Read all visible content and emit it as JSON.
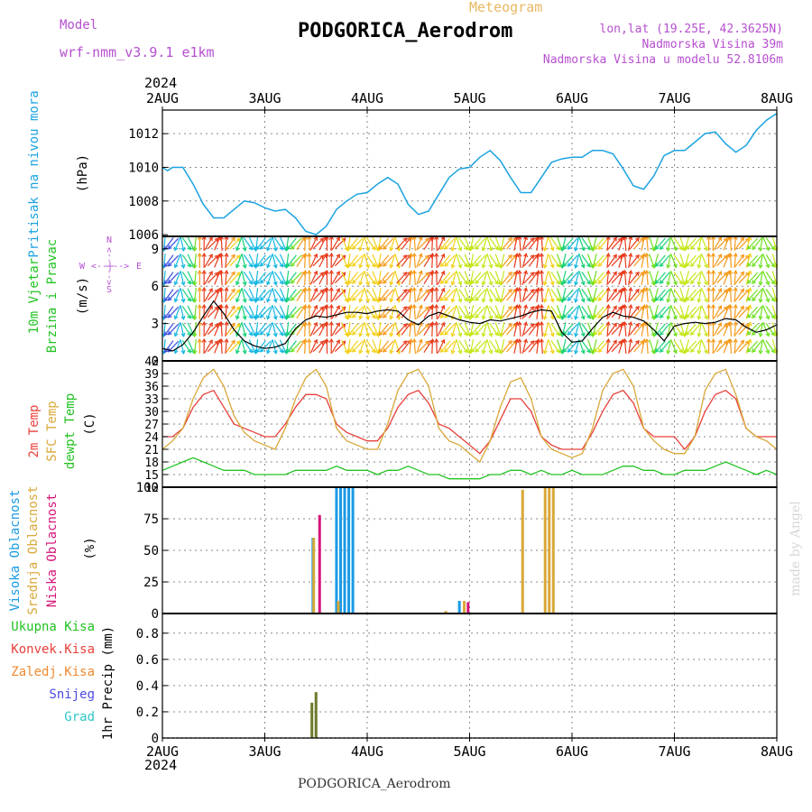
{
  "header": {
    "model_label": "Model",
    "model_name": "wrf-nmm_v3.9.1 e1km",
    "product": "Meteogram",
    "station": "PODGORICA_Aerodrom",
    "lonlat": "lon,lat (19.25E, 42.3625N)",
    "altitude": "Nadmorska Visina 39m",
    "model_altitude": "Nadmorska Visina u modelu 52.8106m",
    "year": "2024",
    "footer_station": "PODGORICA_Aerodrom",
    "watermark": "made by Angel"
  },
  "colors": {
    "pressure": "#1ba3e0",
    "temp2m": "#e8403a",
    "sfctemp": "#d9a839",
    "dewpt": "#22c322",
    "wind_speed": "#000000",
    "high_cloud": "#1a9ae6",
    "mid_cloud": "#d9a839",
    "low_cloud": "#d6147a",
    "total_precip": "#22c322",
    "conv_precip": "#e8403a",
    "frz_precip": "#f08a30",
    "snow": "#4a4ae0",
    "hail": "#2ec8c8",
    "header_purple": "#b64fd0",
    "header_orange": "#e8b860"
  },
  "chart_data": [
    {
      "type": "line",
      "panel": "pressure",
      "ylabel_left": "Pritisak na nivou mora",
      "ylabel_unit": "(hPa)",
      "x_ticks": [
        "2AUG",
        "3AUG",
        "4AUG",
        "5AUG",
        "6AUG",
        "7AUG",
        "8AUG"
      ],
      "y_ticks": [
        "1006",
        "1008",
        "1010",
        "1012"
      ],
      "ylim": [
        1005.9,
        1013.4
      ],
      "x_days": [
        0,
        0.05,
        0.1,
        0.2,
        0.3,
        0.4,
        0.5,
        0.6,
        0.7,
        0.8,
        0.9,
        1.0,
        1.1,
        1.2,
        1.3,
        1.4,
        1.5,
        1.6,
        1.7,
        1.8,
        1.9,
        2.0,
        2.1,
        2.2,
        2.3,
        2.4,
        2.5,
        2.6,
        2.7,
        2.8,
        2.9,
        3.0,
        3.1,
        3.2,
        3.3,
        3.4,
        3.5,
        3.6,
        3.7,
        3.8,
        3.9,
        4.0,
        4.1,
        4.2,
        4.3,
        4.4,
        4.5,
        4.6,
        4.7,
        4.8,
        4.9,
        5.0,
        5.1,
        5.2,
        5.3,
        5.4,
        5.5,
        5.6,
        5.7,
        5.8,
        5.9,
        6.0
      ],
      "series": [
        {
          "name": "Pritisak na nivou mora",
          "values": [
            1010.0,
            1009.8,
            1010.0,
            1010.0,
            1009.0,
            1007.8,
            1007.0,
            1007.0,
            1007.5,
            1008.0,
            1007.9,
            1007.6,
            1007.4,
            1007.5,
            1007.0,
            1006.2,
            1006.0,
            1006.5,
            1007.5,
            1008.0,
            1008.4,
            1008.5,
            1009.0,
            1009.4,
            1009.0,
            1007.8,
            1007.2,
            1007.4,
            1008.4,
            1009.4,
            1009.9,
            1010.0,
            1010.6,
            1011.0,
            1010.4,
            1009.4,
            1008.5,
            1008.5,
            1009.4,
            1010.3,
            1010.5,
            1010.6,
            1010.6,
            1011.0,
            1011.0,
            1010.8,
            1009.9,
            1008.9,
            1008.7,
            1009.5,
            1010.7,
            1011.0,
            1011.0,
            1011.5,
            1012.0,
            1012.1,
            1011.4,
            1010.9,
            1011.3,
            1012.2,
            1012.8,
            1013.2
          ]
        }
      ]
    },
    {
      "type": "line",
      "panel": "wind",
      "ylabel_left": [
        "10m Vjetar",
        "Brzina i Pravac"
      ],
      "ylabel_unit": "(m/s)",
      "compass": {
        "n": "N",
        "s": "S",
        "w": "W",
        "e": "E",
        "arrows": "<--|-->"
      },
      "y_ticks": [
        "0",
        "3",
        "6",
        "9"
      ],
      "ylim": [
        0,
        10
      ],
      "x_days": [
        0,
        0.1,
        0.2,
        0.3,
        0.4,
        0.5,
        0.6,
        0.7,
        0.8,
        0.9,
        1.0,
        1.1,
        1.2,
        1.3,
        1.4,
        1.5,
        1.6,
        1.7,
        1.8,
        1.9,
        2.0,
        2.1,
        2.2,
        2.3,
        2.4,
        2.5,
        2.6,
        2.7,
        2.8,
        2.9,
        3.0,
        3.1,
        3.2,
        3.3,
        3.4,
        3.5,
        3.6,
        3.7,
        3.8,
        3.9,
        4.0,
        4.1,
        4.2,
        4.3,
        4.4,
        4.5,
        4.6,
        4.7,
        4.8,
        4.9,
        5.0,
        5.1,
        5.2,
        5.3,
        5.4,
        5.5,
        5.6,
        5.7,
        5.8,
        5.9,
        6.0
      ],
      "series": [
        {
          "name": "10m Vjetar",
          "values": [
            1.0,
            0.8,
            1.3,
            2.3,
            3.6,
            4.8,
            3.8,
            2.5,
            1.6,
            1.2,
            1.0,
            1.1,
            1.4,
            2.6,
            3.3,
            3.6,
            3.5,
            3.7,
            3.9,
            3.9,
            3.8,
            4.0,
            4.1,
            4.0,
            3.3,
            2.9,
            3.6,
            3.9,
            3.6,
            3.3,
            3.1,
            3.0,
            3.3,
            3.2,
            3.4,
            3.6,
            3.9,
            4.1,
            4.0,
            2.3,
            1.5,
            1.6,
            2.6,
            3.5,
            3.9,
            3.6,
            3.5,
            3.2,
            2.5,
            1.6,
            2.8,
            3.0,
            3.1,
            3.0,
            3.1,
            3.4,
            3.3,
            2.7,
            2.3,
            2.5,
            2.9
          ]
        }
      ]
    },
    {
      "type": "line",
      "panel": "temperature",
      "ylabel_left": [
        "2m Temp",
        "SFC Temp",
        "dewpt Temp"
      ],
      "ylabel_unit": "(C)",
      "y_ticks": [
        "12",
        "15",
        "18",
        "21",
        "24",
        "27",
        "30",
        "33",
        "36",
        "39",
        "42"
      ],
      "ylim": [
        12,
        42
      ],
      "x_days": [
        0,
        0.1,
        0.2,
        0.3,
        0.4,
        0.5,
        0.6,
        0.7,
        0.8,
        0.9,
        1.0,
        1.1,
        1.2,
        1.3,
        1.4,
        1.5,
        1.6,
        1.7,
        1.8,
        1.9,
        2.0,
        2.1,
        2.2,
        2.3,
        2.4,
        2.5,
        2.6,
        2.7,
        2.8,
        2.9,
        3.0,
        3.1,
        3.2,
        3.3,
        3.4,
        3.5,
        3.6,
        3.7,
        3.8,
        3.9,
        4.0,
        4.1,
        4.2,
        4.3,
        4.4,
        4.5,
        4.6,
        4.7,
        4.8,
        4.9,
        5.0,
        5.1,
        5.2,
        5.3,
        5.4,
        5.5,
        5.6,
        5.7,
        5.8,
        5.9,
        6.0
      ],
      "series": [
        {
          "name": "2m Temp",
          "values": [
            24,
            24,
            26,
            31,
            34,
            35,
            31,
            27,
            26,
            25,
            24,
            24,
            27,
            31,
            34,
            34,
            33,
            27,
            25,
            24,
            23,
            23,
            26,
            31,
            34,
            35,
            32,
            27,
            26,
            24,
            22,
            20,
            23,
            28,
            33,
            33,
            30,
            24,
            22,
            21,
            21,
            21,
            25,
            30,
            34,
            35,
            32,
            26,
            24,
            24,
            24,
            21,
            24,
            30,
            34,
            35,
            33,
            26,
            24,
            24,
            24
          ]
        },
        {
          "name": "SFC Temp",
          "values": [
            21,
            23,
            26,
            33,
            38,
            40,
            36,
            29,
            25,
            23,
            22,
            21,
            26,
            33,
            38,
            40,
            36,
            26,
            23,
            22,
            21,
            21,
            27,
            35,
            39,
            40,
            36,
            26,
            23,
            22,
            20,
            18,
            23,
            31,
            37,
            38,
            33,
            24,
            21,
            20,
            19,
            20,
            26,
            35,
            39,
            40,
            36,
            26,
            23,
            21,
            20,
            20,
            24,
            35,
            39,
            40,
            34,
            26,
            24,
            23,
            21
          ]
        },
        {
          "name": "dewpt Temp",
          "values": [
            16,
            17,
            18,
            19,
            18,
            17,
            16,
            16,
            16,
            15,
            15,
            15,
            15,
            16,
            16,
            16,
            16,
            17,
            16,
            16,
            16,
            15,
            16,
            16,
            17,
            16,
            15,
            15,
            14,
            14,
            14,
            14,
            15,
            15,
            16,
            16,
            15,
            16,
            15,
            15,
            16,
            15,
            15,
            15,
            16,
            17,
            17,
            16,
            16,
            15,
            15,
            16,
            16,
            16,
            17,
            18,
            17,
            16,
            15,
            16,
            15
          ]
        }
      ]
    },
    {
      "type": "bar",
      "panel": "cloud",
      "ylabel_left": [
        "Visoka Oblacnost",
        "Srednja Oblacnost",
        "Niska Oblacnost"
      ],
      "ylabel_unit": "(%)",
      "y_ticks": [
        "0",
        "25",
        "50",
        "75",
        "100"
      ],
      "ylim": [
        0,
        100
      ],
      "series": [
        {
          "name": "Visoka Oblacnost",
          "points": [
            [
              1.47,
              60
            ],
            [
              1.7,
              100
            ],
            [
              1.74,
              100
            ],
            [
              1.78,
              100
            ],
            [
              1.82,
              100
            ],
            [
              1.86,
              100
            ],
            [
              2.9,
              10
            ]
          ]
        },
        {
          "name": "Srednja Oblacnost",
          "points": [
            [
              1.46,
              60
            ],
            [
              1.7,
              10
            ],
            [
              2.93,
              10
            ],
            [
              3.5,
              98
            ],
            [
              3.72,
              100
            ],
            [
              3.76,
              100
            ],
            [
              3.8,
              100
            ],
            [
              2.75,
              2
            ]
          ]
        },
        {
          "name": "Niska Oblacnost",
          "points": [
            [
              1.5,
              78
            ],
            [
              2.95,
              9
            ]
          ]
        }
      ]
    },
    {
      "type": "bar",
      "panel": "precip",
      "ylabel_left": [
        "Ukupna Kisa",
        "Konvek.Kisa",
        "Zaledj.Kisa",
        "Snijeg",
        "Grad"
      ],
      "ylabel_unit": "1hr Precip (mm)",
      "y_ticks": [
        "0",
        "0.2",
        "0.4",
        "0.6",
        "0.8"
      ],
      "ylim": [
        0,
        0.95
      ],
      "series": [
        {
          "name": "Ukupna Kisa",
          "points": [
            [
              1.46,
              0.27
            ],
            [
              1.5,
              0.35
            ]
          ]
        }
      ]
    }
  ]
}
